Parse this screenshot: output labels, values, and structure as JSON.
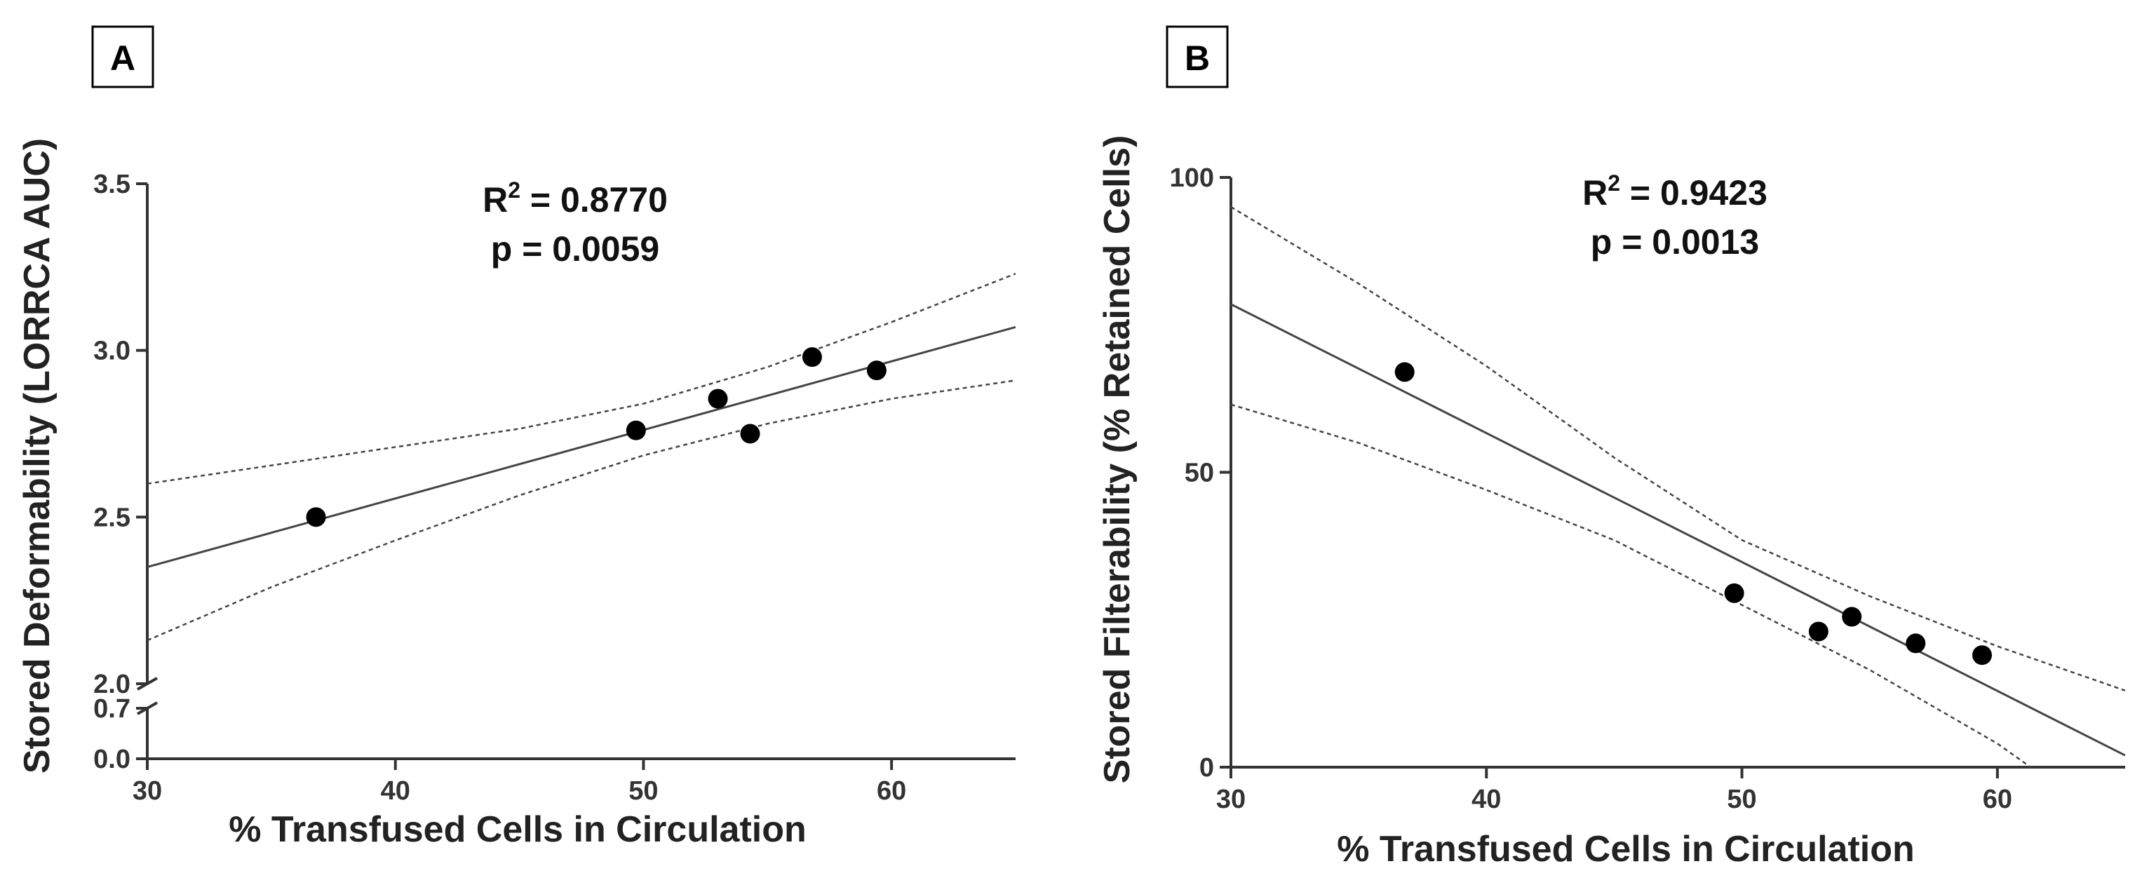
{
  "chart_data": [
    {
      "type": "scatter",
      "panel_label": "A",
      "title": "",
      "xlabel": "% Transfused Cells in Circulation",
      "ylabel": "Stored Deformability (LORRCA AUC)",
      "xlim": [
        30,
        65
      ],
      "ylim_main": [
        2.0,
        3.5
      ],
      "ylim_break": [
        0.0,
        0.7
      ],
      "x_ticks": [
        "30",
        "40",
        "50",
        "60"
      ],
      "y_ticks_main": [
        "2.0",
        "2.5",
        "3.0",
        "3.5"
      ],
      "y_ticks_break": [
        "0.0",
        "0.7"
      ],
      "stats": {
        "r2_prefix": "R",
        "r2_sup": "2",
        "r2_value": " = 0.8770",
        "p_text": "p = 0.0059"
      },
      "series": [
        {
          "name": "data",
          "x": [
            36.8,
            49.7,
            53.0,
            54.3,
            56.8,
            59.4
          ],
          "y": [
            2.5,
            2.76,
            2.855,
            2.75,
            2.98,
            2.94
          ]
        }
      ],
      "fit_line": {
        "x": [
          30,
          65
        ],
        "y": [
          2.35,
          3.07
        ]
      },
      "ci_upper": {
        "x": [
          30,
          35,
          40,
          45,
          50,
          55,
          60,
          65
        ],
        "y": [
          2.6,
          2.655,
          2.71,
          2.765,
          2.84,
          2.95,
          3.085,
          3.23
        ]
      },
      "ci_lower": {
        "x": [
          30,
          35,
          40,
          45,
          50,
          55,
          60,
          65
        ],
        "y": [
          2.13,
          2.29,
          2.43,
          2.565,
          2.685,
          2.78,
          2.855,
          2.91
        ]
      }
    },
    {
      "type": "scatter",
      "panel_label": "B",
      "title": "",
      "xlabel": "% Transfused Cells in Circulation",
      "ylabel": "Stored Filterability (% Retained Cells)",
      "xlim": [
        30,
        65
      ],
      "ylim": [
        0,
        100
      ],
      "x_ticks": [
        "30",
        "40",
        "50",
        "60"
      ],
      "y_ticks": [
        "0",
        "50",
        "100"
      ],
      "stats": {
        "r2_prefix": "R",
        "r2_sup": "2",
        "r2_value": " = 0.9423",
        "p_text": "p = 0.0013"
      },
      "series": [
        {
          "name": "data",
          "x": [
            36.8,
            49.7,
            53.0,
            54.3,
            56.8,
            59.4
          ],
          "y": [
            67.0,
            29.5,
            23.0,
            25.5,
            21.0,
            19.0
          ]
        }
      ],
      "fit_line": {
        "x": [
          30,
          65
        ],
        "y": [
          78.5,
          2.0
        ]
      },
      "ci_upper": {
        "x": [
          30,
          35,
          40,
          45,
          50,
          55,
          60,
          65
        ],
        "y": [
          95,
          82,
          68,
          52.5,
          38.5,
          29,
          20.5,
          13
        ]
      },
      "ci_lower": {
        "x": [
          30,
          35,
          40,
          45,
          50,
          55,
          60,
          61.3
        ],
        "y": [
          61.5,
          55,
          47,
          38.5,
          27.5,
          16.5,
          4,
          0
        ]
      }
    }
  ]
}
